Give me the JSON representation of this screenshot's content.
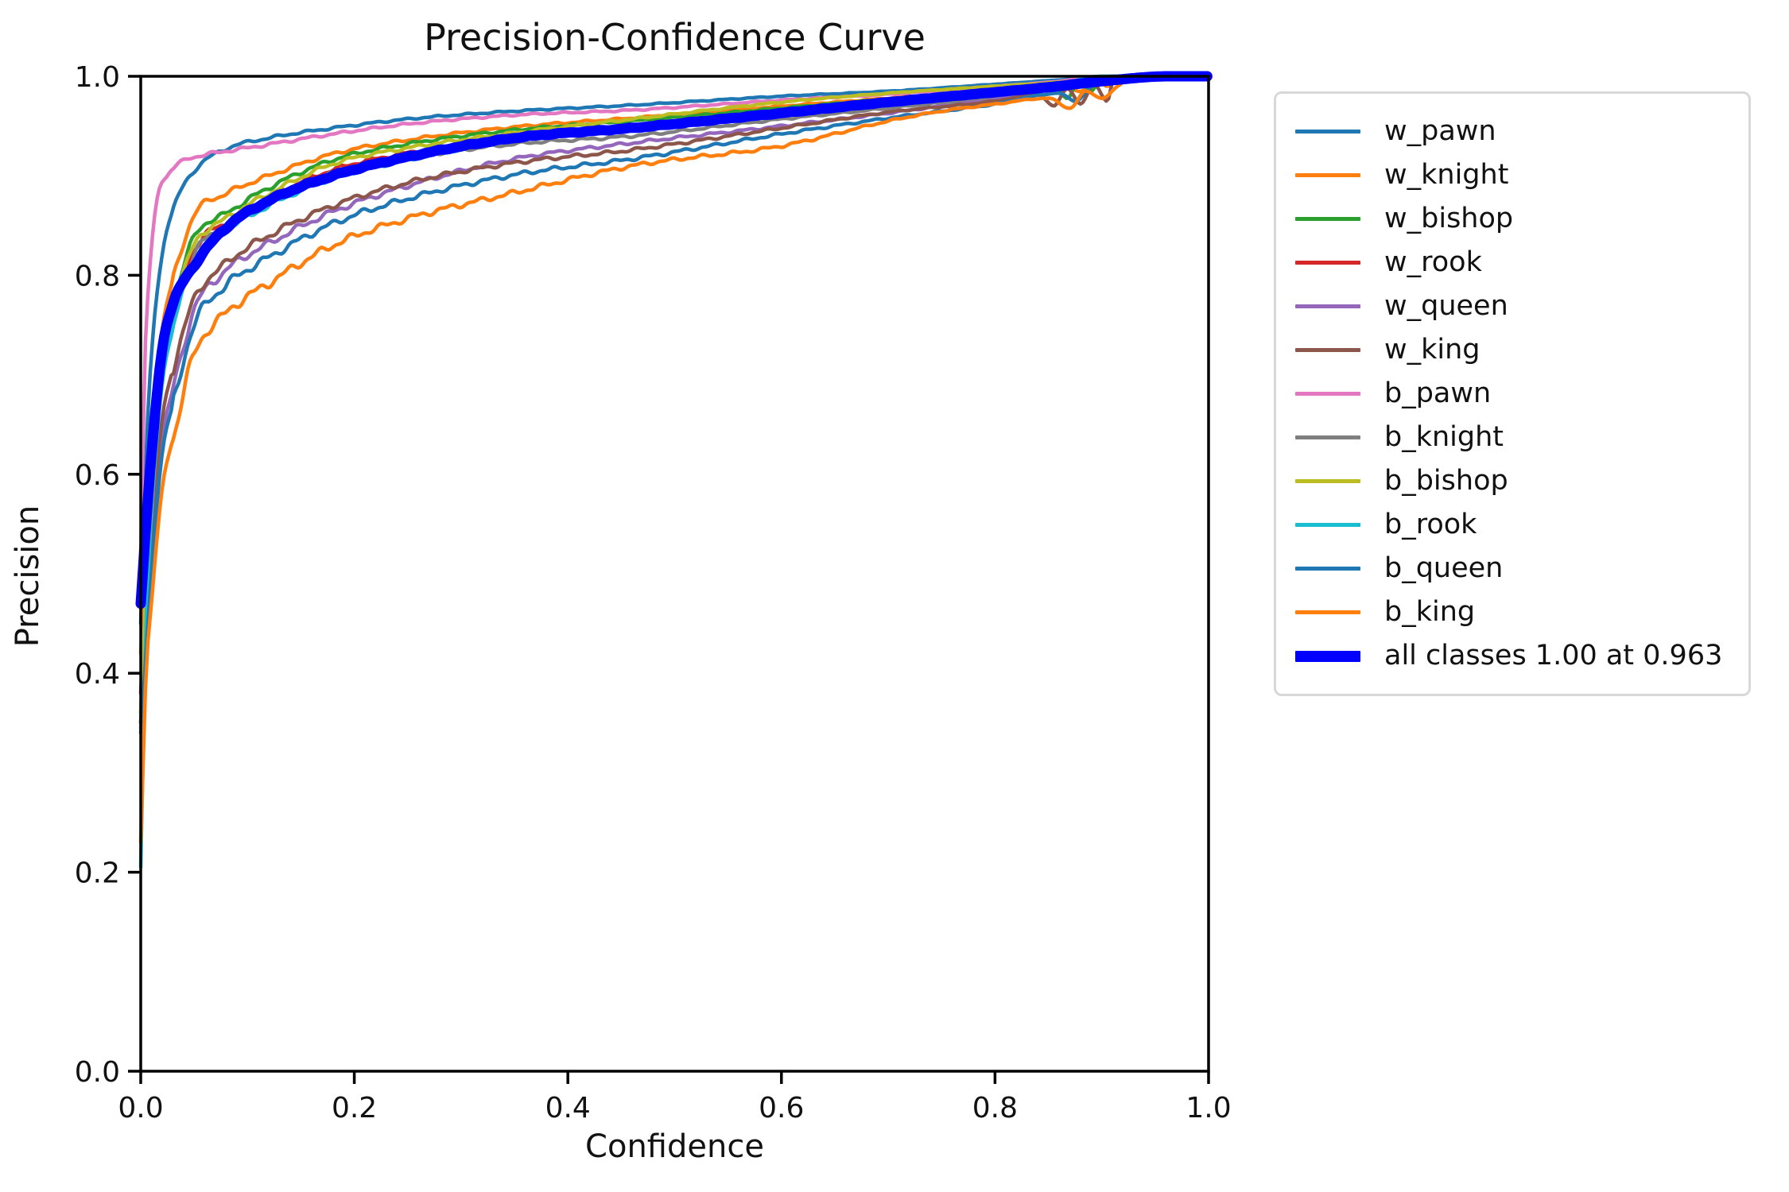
{
  "chart_data": {
    "type": "line",
    "title": "Precision-Confidence Curve",
    "xlabel": "Confidence",
    "ylabel": "Precision",
    "xlim": [
      0.0,
      1.0
    ],
    "ylim": [
      0.0,
      1.0
    ],
    "x_ticks": [
      "0.0",
      "0.2",
      "0.4",
      "0.6",
      "0.8",
      "1.0"
    ],
    "y_ticks": [
      "0.0",
      "0.2",
      "0.4",
      "0.6",
      "0.8",
      "1.0"
    ],
    "grid": false,
    "legend_position": "outside-upper-right",
    "series": [
      {
        "name": "w_pawn",
        "color": "#1f77b4",
        "emphasis": false,
        "x": [
          0,
          0.005,
          0.01,
          0.02,
          0.03,
          0.05,
          0.08,
          0.12,
          0.18,
          0.25,
          0.35,
          0.46,
          0.6,
          0.7,
          0.8,
          0.87,
          0.92,
          1.0
        ],
        "y": [
          0.45,
          0.62,
          0.72,
          0.82,
          0.865,
          0.905,
          0.927,
          0.938,
          0.948,
          0.957,
          0.965,
          0.971,
          0.98,
          0.985,
          0.992,
          0.997,
          1.0,
          1.0
        ]
      },
      {
        "name": "w_knight",
        "color": "#ff7f0e",
        "emphasis": false,
        "x": [
          0,
          0.005,
          0.01,
          0.02,
          0.03,
          0.05,
          0.08,
          0.12,
          0.18,
          0.25,
          0.35,
          0.46,
          0.6,
          0.7,
          0.8,
          0.86,
          0.88,
          0.895,
          0.905,
          0.915,
          1.0
        ],
        "y": [
          0.42,
          0.55,
          0.64,
          0.745,
          0.795,
          0.86,
          0.882,
          0.9,
          0.922,
          0.936,
          0.949,
          0.958,
          0.97,
          0.978,
          0.986,
          0.992,
          0.985,
          0.997,
          0.99,
          1.0,
          1.0
        ]
      },
      {
        "name": "w_bishop",
        "color": "#2ca02c",
        "emphasis": false,
        "x": [
          0,
          0.005,
          0.01,
          0.02,
          0.03,
          0.05,
          0.08,
          0.12,
          0.18,
          0.25,
          0.35,
          0.46,
          0.6,
          0.7,
          0.8,
          0.855,
          0.868,
          0.878,
          0.89,
          0.9,
          1.0
        ],
        "y": [
          0.35,
          0.5,
          0.6,
          0.72,
          0.77,
          0.838,
          0.862,
          0.888,
          0.916,
          0.932,
          0.946,
          0.955,
          0.968,
          0.977,
          0.985,
          0.99,
          0.978,
          0.995,
          0.985,
          1.0,
          1.0
        ]
      },
      {
        "name": "w_rook",
        "color": "#d62728",
        "emphasis": false,
        "x": [
          0,
          0.005,
          0.01,
          0.02,
          0.03,
          0.05,
          0.08,
          0.12,
          0.18,
          0.25,
          0.35,
          0.46,
          0.6,
          0.7,
          0.8,
          0.87,
          0.91,
          1.0
        ],
        "y": [
          0.38,
          0.49,
          0.58,
          0.7,
          0.75,
          0.825,
          0.852,
          0.878,
          0.906,
          0.923,
          0.938,
          0.949,
          0.965,
          0.975,
          0.984,
          0.993,
          1.0,
          1.0
        ]
      },
      {
        "name": "w_queen",
        "color": "#9467bd",
        "emphasis": false,
        "x": [
          0,
          0.005,
          0.01,
          0.02,
          0.03,
          0.05,
          0.08,
          0.12,
          0.18,
          0.25,
          0.35,
          0.46,
          0.6,
          0.7,
          0.8,
          0.87,
          0.915,
          1.0
        ],
        "y": [
          0.345,
          0.44,
          0.52,
          0.635,
          0.685,
          0.765,
          0.805,
          0.832,
          0.864,
          0.89,
          0.917,
          0.933,
          0.95,
          0.963,
          0.978,
          0.99,
          1.0,
          1.0
        ]
      },
      {
        "name": "w_king",
        "color": "#8c564b",
        "emphasis": false,
        "x": [
          0,
          0.005,
          0.01,
          0.02,
          0.03,
          0.05,
          0.08,
          0.12,
          0.18,
          0.25,
          0.35,
          0.46,
          0.6,
          0.7,
          0.8,
          0.84,
          0.855,
          0.868,
          0.88,
          0.893,
          0.905,
          0.912,
          1.0
        ],
        "y": [
          0.35,
          0.46,
          0.54,
          0.655,
          0.705,
          0.775,
          0.812,
          0.84,
          0.87,
          0.893,
          0.913,
          0.926,
          0.948,
          0.964,
          0.975,
          0.982,
          0.97,
          0.988,
          0.972,
          0.992,
          0.975,
          1.0,
          1.0
        ]
      },
      {
        "name": "b_pawn",
        "color": "#e377c2",
        "emphasis": false,
        "x": [
          0,
          0.004,
          0.008,
          0.015,
          0.025,
          0.04,
          0.06,
          0.1,
          0.18,
          0.25,
          0.35,
          0.46,
          0.6,
          0.7,
          0.8,
          0.86,
          0.9,
          1.0
        ],
        "y": [
          0.52,
          0.72,
          0.8,
          0.875,
          0.9,
          0.915,
          0.921,
          0.928,
          0.942,
          0.952,
          0.961,
          0.966,
          0.976,
          0.982,
          0.99,
          0.995,
          1.0,
          1.0
        ]
      },
      {
        "name": "b_knight",
        "color": "#7f7f7f",
        "emphasis": false,
        "x": [
          0,
          0.005,
          0.01,
          0.02,
          0.03,
          0.05,
          0.08,
          0.12,
          0.18,
          0.25,
          0.35,
          0.46,
          0.6,
          0.7,
          0.8,
          0.87,
          0.91,
          1.0
        ],
        "y": [
          0.36,
          0.48,
          0.57,
          0.7,
          0.75,
          0.82,
          0.85,
          0.875,
          0.902,
          0.918,
          0.932,
          0.94,
          0.957,
          0.968,
          0.98,
          0.991,
          1.0,
          1.0
        ]
      },
      {
        "name": "b_bishop",
        "color": "#bcbd22",
        "emphasis": false,
        "x": [
          0,
          0.005,
          0.01,
          0.02,
          0.03,
          0.05,
          0.08,
          0.12,
          0.18,
          0.25,
          0.35,
          0.46,
          0.6,
          0.7,
          0.8,
          0.87,
          0.905,
          1.0
        ],
        "y": [
          0.36,
          0.49,
          0.59,
          0.715,
          0.765,
          0.83,
          0.857,
          0.882,
          0.912,
          0.928,
          0.943,
          0.957,
          0.974,
          0.983,
          0.99,
          0.995,
          1.0,
          1.0
        ]
      },
      {
        "name": "b_rook",
        "color": "#17becf",
        "emphasis": false,
        "x": [
          0,
          0.005,
          0.01,
          0.02,
          0.03,
          0.05,
          0.08,
          0.12,
          0.18,
          0.25,
          0.35,
          0.46,
          0.6,
          0.7,
          0.8,
          0.86,
          0.9,
          1.0
        ],
        "y": [
          0.205,
          0.45,
          0.56,
          0.69,
          0.745,
          0.815,
          0.845,
          0.87,
          0.898,
          0.916,
          0.936,
          0.949,
          0.964,
          0.974,
          0.984,
          0.992,
          1.0,
          1.0
        ]
      },
      {
        "name": "b_queen",
        "color": "#1f77b4",
        "emphasis": false,
        "x": [
          0,
          0.005,
          0.01,
          0.02,
          0.03,
          0.05,
          0.08,
          0.12,
          0.18,
          0.25,
          0.35,
          0.46,
          0.6,
          0.7,
          0.8,
          0.86,
          0.875,
          0.89,
          0.91,
          1.0
        ],
        "y": [
          0.34,
          0.42,
          0.5,
          0.62,
          0.67,
          0.75,
          0.79,
          0.818,
          0.852,
          0.877,
          0.901,
          0.917,
          0.942,
          0.958,
          0.972,
          0.983,
          0.975,
          0.99,
          1.0,
          1.0
        ]
      },
      {
        "name": "b_king",
        "color": "#ff7f0e",
        "emphasis": false,
        "x": [
          0,
          0.005,
          0.01,
          0.02,
          0.03,
          0.05,
          0.08,
          0.12,
          0.18,
          0.25,
          0.35,
          0.46,
          0.6,
          0.7,
          0.75,
          0.8,
          0.85,
          0.87,
          0.885,
          0.9,
          0.915,
          0.93,
          1.0
        ],
        "y": [
          0.23,
          0.4,
          0.47,
          0.585,
          0.635,
          0.72,
          0.762,
          0.792,
          0.83,
          0.857,
          0.883,
          0.91,
          0.93,
          0.955,
          0.965,
          0.972,
          0.978,
          0.968,
          0.985,
          0.978,
          0.99,
          1.0,
          1.0
        ]
      },
      {
        "name": "all classes 1.00 at 0.963",
        "color": "#0000ff",
        "emphasis": true,
        "x": [
          0,
          0.005,
          0.01,
          0.02,
          0.03,
          0.05,
          0.08,
          0.12,
          0.18,
          0.25,
          0.35,
          0.46,
          0.6,
          0.7,
          0.8,
          0.85,
          0.9,
          0.963,
          1.0
        ],
        "y": [
          0.47,
          0.55,
          0.62,
          0.725,
          0.77,
          0.81,
          0.848,
          0.875,
          0.9,
          0.919,
          0.938,
          0.948,
          0.963,
          0.974,
          0.984,
          0.989,
          0.995,
          1.0,
          1.0
        ]
      }
    ]
  }
}
